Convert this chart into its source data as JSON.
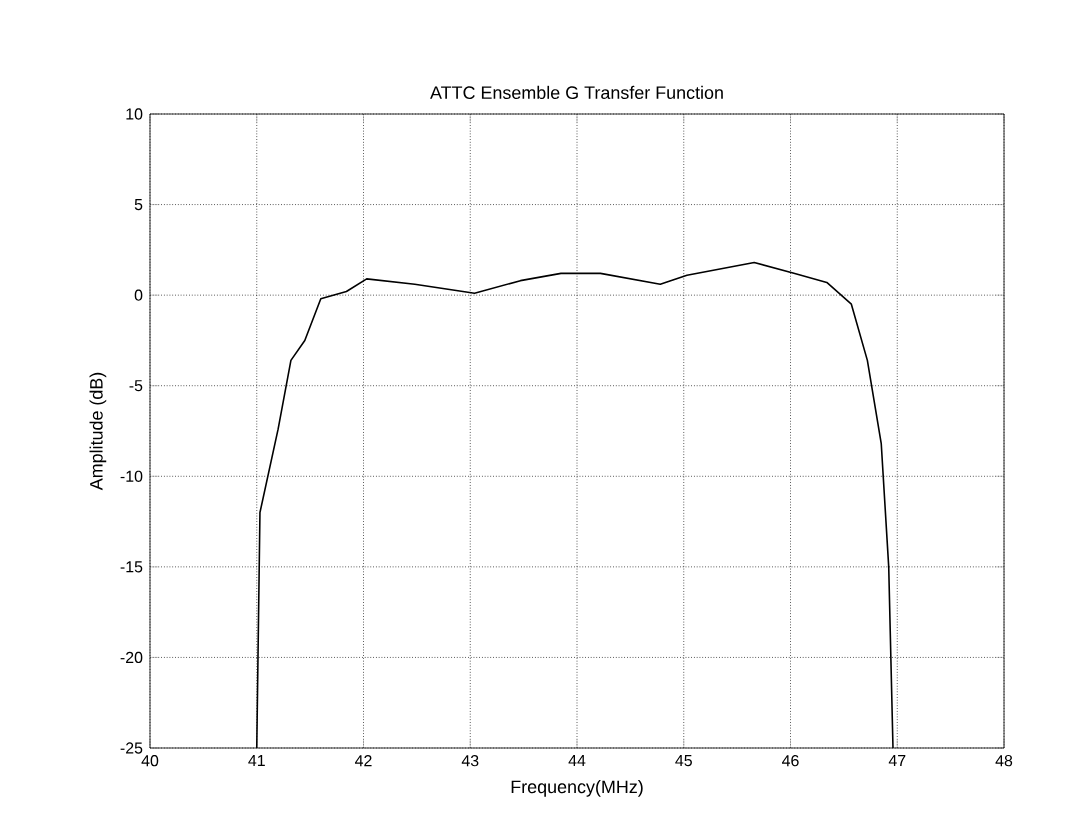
{
  "chart_data": {
    "type": "line",
    "title": "ATTC Ensemble G Transfer Function",
    "xlabel": "Frequency(MHz)",
    "ylabel": "Amplitude (dB)",
    "x": [
      41.0,
      41.03,
      41.2,
      41.32,
      41.45,
      41.6,
      41.84,
      42.03,
      42.48,
      43.04,
      43.47,
      43.85,
      44.22,
      44.78,
      45.03,
      45.66,
      46.04,
      46.34,
      46.57,
      46.72,
      46.85,
      46.92,
      46.96
    ],
    "series": [
      {
        "color": "#000000",
        "values": [
          -25,
          -12,
          -7.4,
          -3.6,
          -2.5,
          -0.2,
          0.2,
          0.9,
          0.6,
          0.1,
          0.8,
          1.2,
          1.2,
          0.6,
          1.1,
          1.8,
          1.2,
          0.7,
          -0.5,
          -3.6,
          -8.2,
          -15,
          -25
        ]
      }
    ],
    "xlim": [
      40,
      48
    ],
    "xticks": [
      40,
      41,
      42,
      43,
      44,
      45,
      46,
      47,
      48
    ],
    "ylim": [
      -25,
      10
    ],
    "yticks": [
      -25,
      -20,
      -15,
      -10,
      -5,
      0,
      5,
      10
    ],
    "grid": true,
    "marker": "none",
    "line_style": "solid"
  }
}
